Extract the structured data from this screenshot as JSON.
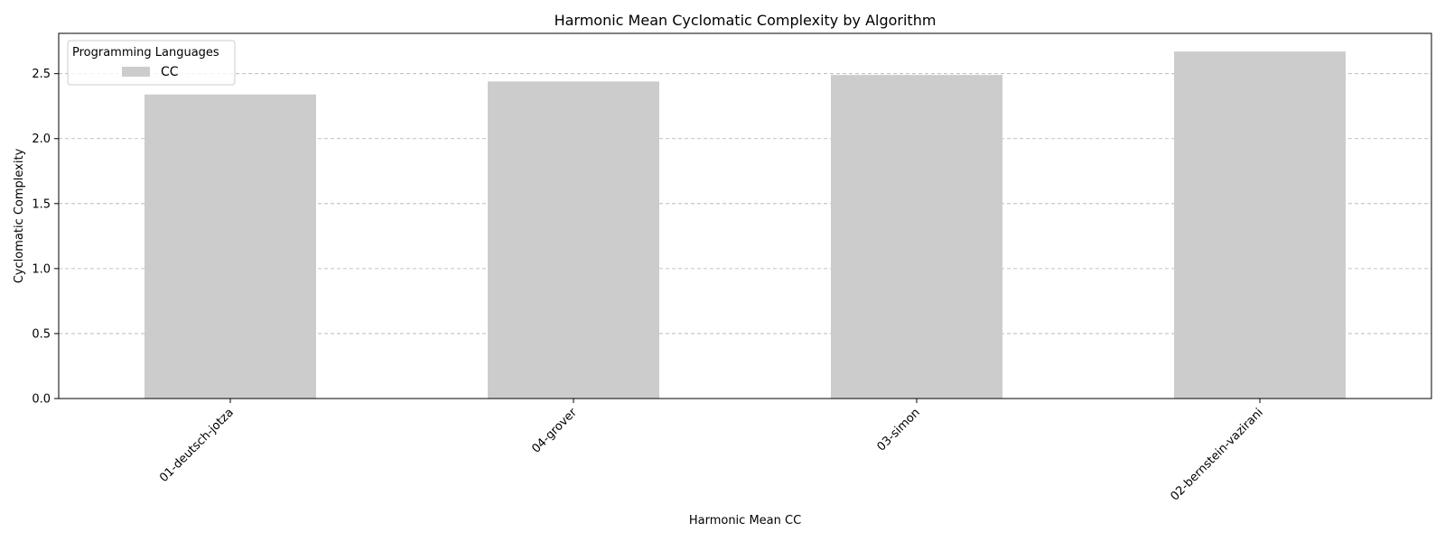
{
  "chart_data": {
    "type": "bar",
    "title": "Harmonic Mean Cyclomatic Complexity by Algorithm",
    "xlabel": "Harmonic Mean CC",
    "ylabel": "Cyclomatic Complexity",
    "categories": [
      "01-deutsch-jotza",
      "04-grover",
      "03-simon",
      "02-bernstein-vazirani"
    ],
    "series": [
      {
        "name": "CC",
        "values": [
          2.34,
          2.44,
          2.49,
          2.67
        ],
        "color": "#cccccc"
      }
    ],
    "ylim": [
      0,
      2.81
    ],
    "yticks": [
      "0.0",
      "0.5",
      "1.0",
      "1.5",
      "2.0",
      "2.5"
    ],
    "grid": true,
    "legend": {
      "title": "Programming Languages",
      "position": "top-left"
    }
  }
}
